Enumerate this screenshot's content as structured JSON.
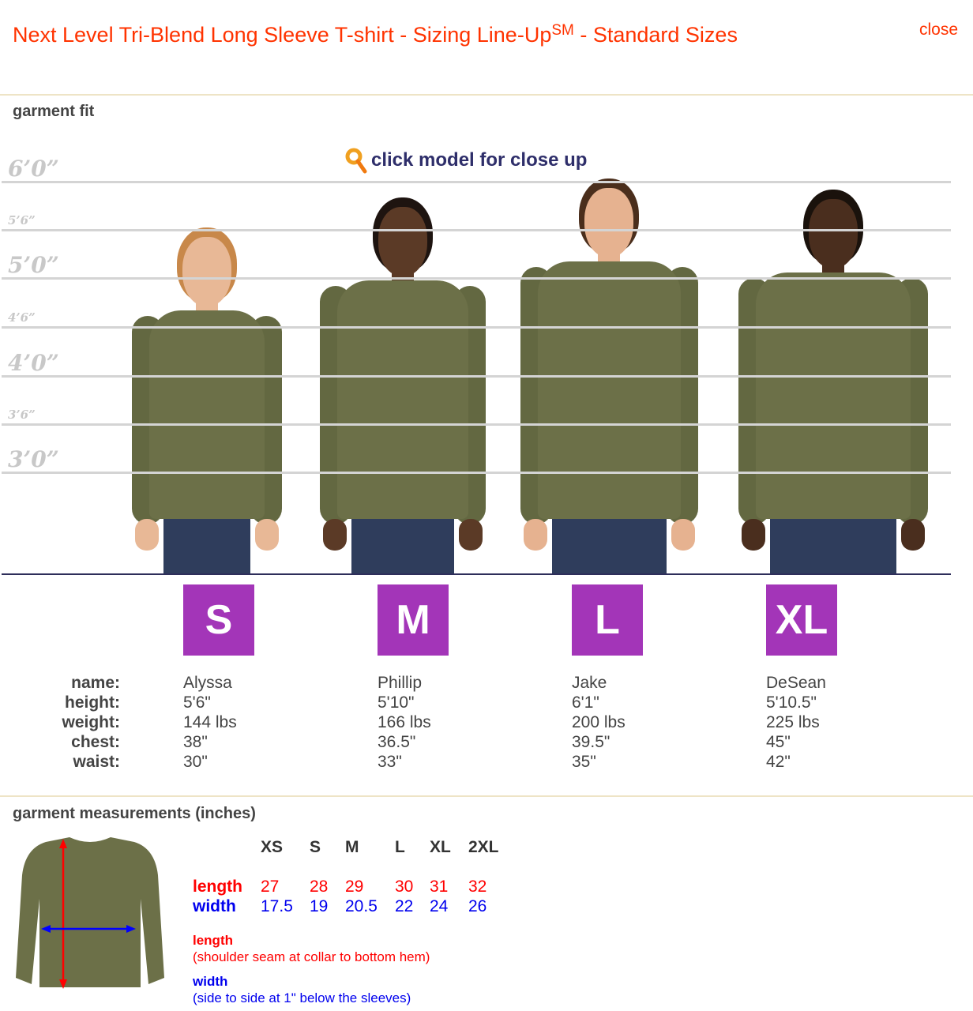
{
  "header": {
    "title": "Next Level Tri-Blend Long Sleeve T-shirt - Sizing Line-Up",
    "title_sup": "SM",
    "title_tail": " - Standard Sizes",
    "close_label": "close"
  },
  "fit": {
    "heading": "garment fit",
    "tip": "click model for close up",
    "tip_icon": "magnifier-icon",
    "height_marks": [
      "6’0”",
      "5’6”",
      "5’0”",
      "4’6”",
      "4’0”",
      "3’6”",
      "3’0”"
    ],
    "labels": {
      "name": "name:",
      "height": "height:",
      "weight": "weight:",
      "chest": "chest:",
      "waist": "waist:"
    },
    "models": [
      {
        "size": "S",
        "name": "Alyssa",
        "height": "5'6\"",
        "weight": "144 lbs",
        "chest": "38\"",
        "waist": "30\""
      },
      {
        "size": "M",
        "name": "Phillip",
        "height": "5'10\"",
        "weight": "166 lbs",
        "chest": "36.5\"",
        "waist": "33\""
      },
      {
        "size": "L",
        "name": "Jake",
        "height": "6'1\"",
        "weight": "200 lbs",
        "chest": "39.5\"",
        "waist": "35\""
      },
      {
        "size": "XL",
        "name": "DeSean",
        "height": "5'10.5\"",
        "weight": "225 lbs",
        "chest": "45\"",
        "waist": "42\""
      }
    ],
    "badge_color": "#a335b8"
  },
  "measurements": {
    "heading": "garment measurements (inches)",
    "sizes": [
      "XS",
      "S",
      "M",
      "L",
      "XL",
      "2XL"
    ],
    "length_label": "length",
    "width_label": "width",
    "length": [
      "27",
      "28",
      "29",
      "30",
      "31",
      "32"
    ],
    "width": [
      "17.5",
      "19",
      "20.5",
      "22",
      "24",
      "26"
    ],
    "length_note_title": "length",
    "length_note": "(shoulder seam at collar to bottom hem)",
    "width_note_title": "width",
    "width_note": "(side to side at 1\" below the sleeves)",
    "length_color": "#ff0000",
    "width_color": "#0000ee"
  }
}
